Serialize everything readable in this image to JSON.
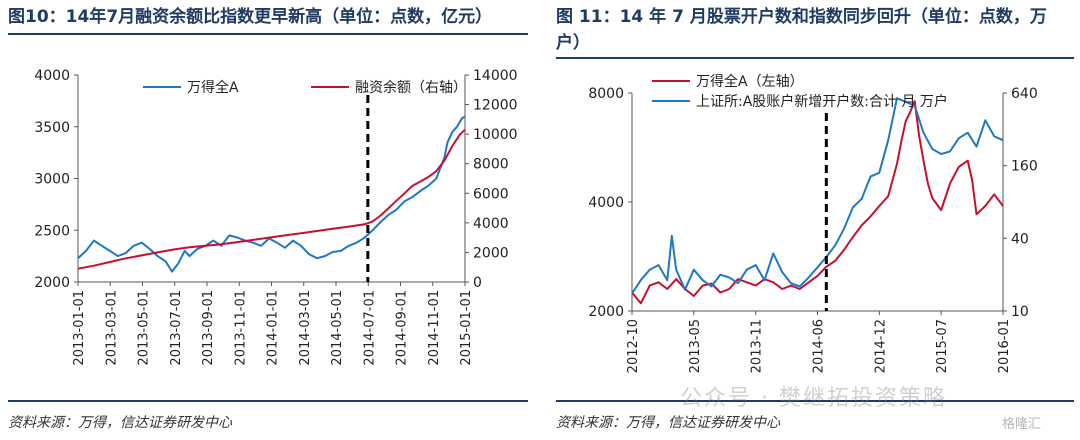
{
  "watermark": "公众号 · 樊继拓投资策略",
  "watermark_logo": "格隆汇",
  "colors": {
    "blue": "#1f78c4",
    "red": "#c8102e",
    "title": "#1f3b63"
  },
  "chart_data": [
    {
      "type": "line",
      "title": "图10：14年7月融资余额比指数更早新高（单位：点数，亿元）",
      "source": "资料来源：万得，信达证券研发中心",
      "legend_position": "top",
      "xlabel": "",
      "ylabel": "",
      "x_ticks": [
        "2013-01-01",
        "2013-03-01",
        "2013-05-01",
        "2013-07-01",
        "2013-09-01",
        "2013-11-01",
        "2014-01-01",
        "2014-03-01",
        "2014-05-01",
        "2014-07-01",
        "2014-09-01",
        "2014-11-01",
        "2015-01-01"
      ],
      "y_left": {
        "ticks": [
          2000,
          2500,
          3000,
          3500,
          4000
        ],
        "range": [
          2000,
          4000
        ]
      },
      "y_right": {
        "ticks": [
          0,
          2000,
          4000,
          6000,
          8000,
          10000,
          12000,
          14000
        ],
        "range": [
          0,
          14000
        ]
      },
      "x_range": [
        0,
        24.3
      ],
      "marker_x": 18.2,
      "series": [
        {
          "name": "万得全A",
          "axis": "left",
          "color": "#1f78c4",
          "x": [
            0,
            0.5,
            1,
            1.5,
            2,
            2.5,
            3,
            3.5,
            4,
            4.5,
            5,
            5.5,
            5.9,
            6.3,
            6.7,
            7,
            7.5,
            8,
            8.5,
            9,
            9.5,
            10,
            10.5,
            11,
            11.5,
            12,
            12.5,
            13,
            13.5,
            14,
            14.5,
            15,
            15.5,
            16,
            16.5,
            17,
            17.5,
            18,
            18.5,
            19,
            19.5,
            20,
            20.5,
            21,
            21.5,
            22,
            22.5,
            23,
            23.2,
            23.5,
            23.8,
            24.1,
            24.3
          ],
          "y": [
            2230,
            2300,
            2400,
            2350,
            2300,
            2250,
            2280,
            2350,
            2380,
            2320,
            2250,
            2200,
            2100,
            2180,
            2300,
            2250,
            2320,
            2350,
            2400,
            2350,
            2450,
            2430,
            2400,
            2380,
            2350,
            2420,
            2380,
            2330,
            2400,
            2350,
            2270,
            2230,
            2250,
            2290,
            2300,
            2350,
            2380,
            2430,
            2500,
            2580,
            2650,
            2700,
            2780,
            2820,
            2880,
            2930,
            3000,
            3200,
            3350,
            3450,
            3500,
            3580,
            3600
          ]
        },
        {
          "name": "融资余额（右轴）",
          "axis": "right",
          "color": "#c8102e",
          "x": [
            0,
            1,
            2,
            3,
            4,
            5,
            6,
            7,
            8,
            9,
            10,
            11,
            12,
            13,
            14,
            15,
            16,
            17,
            18,
            18.5,
            19,
            19.5,
            20,
            20.5,
            21,
            21.5,
            22,
            22.5,
            23,
            23.5,
            24,
            24.3
          ],
          "y": [
            900,
            1100,
            1350,
            1600,
            1800,
            2000,
            2200,
            2350,
            2450,
            2550,
            2700,
            2850,
            3000,
            3150,
            3300,
            3450,
            3600,
            3750,
            3900,
            4100,
            4500,
            5000,
            5500,
            6000,
            6500,
            6800,
            7100,
            7500,
            8200,
            9200,
            10000,
            10300
          ]
        }
      ]
    },
    {
      "type": "line",
      "title": "图 11：14 年 7 月股票开户数和指数同步回升（单位：点数，万户）",
      "source": "资料来源：万得，信达证券研发中心",
      "legend_position": "top",
      "xlabel": "",
      "ylabel": "",
      "x_ticks": [
        "2012-10",
        "2013-05",
        "2013-11",
        "2014-06",
        "2014-12",
        "2015-07",
        "2016-01"
      ],
      "y_left": {
        "ticks": [
          2000,
          4000,
          8000
        ],
        "scale": "log2",
        "range": [
          2000,
          8000
        ]
      },
      "y_right": {
        "ticks": [
          10,
          40,
          160,
          640
        ],
        "scale": "log4",
        "range": [
          10,
          640
        ]
      },
      "x_range": [
        0,
        42
      ],
      "marker_x": 22,
      "series": [
        {
          "name": "万得全A（左轴）",
          "axis": "left",
          "color": "#c8102e",
          "x": [
            0,
            1,
            2,
            3,
            4,
            5,
            6,
            7,
            8,
            9,
            10,
            11,
            12,
            13,
            14,
            15,
            16,
            17,
            18,
            19,
            20,
            21,
            22,
            23,
            24,
            25,
            26,
            27,
            28,
            29,
            30,
            30.5,
            31,
            31.5,
            32,
            32.5,
            33,
            33.5,
            34,
            35,
            36,
            37,
            38,
            38.5,
            39,
            40,
            41,
            42
          ],
          "y": [
            2250,
            2100,
            2350,
            2400,
            2300,
            2450,
            2300,
            2200,
            2350,
            2380,
            2250,
            2300,
            2450,
            2400,
            2350,
            2450,
            2400,
            2300,
            2350,
            2300,
            2400,
            2500,
            2650,
            2750,
            2950,
            3200,
            3450,
            3650,
            3900,
            4150,
            5100,
            5900,
            6700,
            7100,
            7600,
            6100,
            5200,
            4500,
            4100,
            3800,
            4500,
            5000,
            5200,
            4600,
            3700,
            3900,
            4200,
            3900
          ]
        },
        {
          "name": "上证所:A股账户新增开户数:合计 月 万户",
          "axis": "right",
          "color": "#1f78c4",
          "x": [
            0,
            1,
            2,
            3,
            4,
            4.5,
            5,
            6,
            7,
            8,
            9,
            10,
            11,
            12,
            13,
            14,
            15,
            16,
            17,
            18,
            19,
            20,
            21,
            22,
            23,
            24,
            25,
            26,
            27,
            28,
            29,
            30,
            31,
            32,
            33,
            34,
            35,
            36,
            37,
            38,
            39,
            40,
            41,
            42
          ],
          "y": [
            14,
            18,
            22,
            24,
            18,
            42,
            22,
            15,
            22,
            18,
            16,
            20,
            19,
            17,
            22,
            24,
            18,
            30,
            21,
            17,
            16,
            19,
            23,
            28,
            35,
            48,
            72,
            85,
            130,
            140,
            260,
            580,
            540,
            500,
            300,
            220,
            200,
            210,
            270,
            300,
            230,
            380,
            280,
            260
          ]
        }
      ]
    }
  ]
}
